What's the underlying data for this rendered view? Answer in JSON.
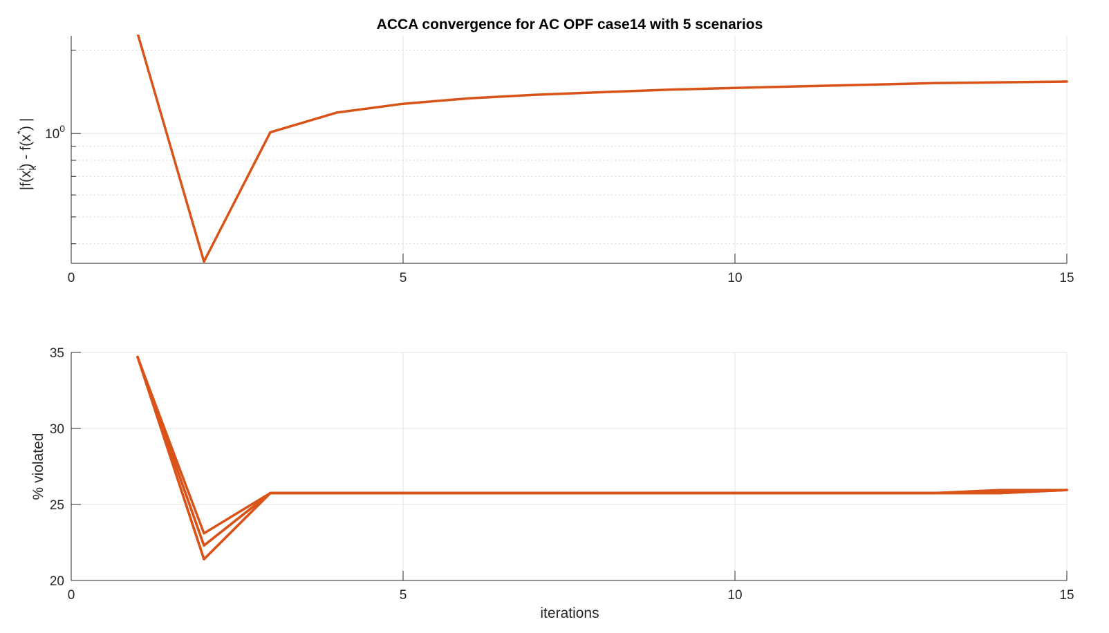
{
  "title": "ACCA convergence for AC OPF case14 with 5 scenarios",
  "colors": {
    "series": "#D95319",
    "axis": "#262626",
    "grid": "#e3e3e3",
    "background": "#ffffff"
  },
  "chart_data": [
    {
      "type": "line",
      "title": "ACCA convergence for AC OPF case14 with 5 scenarios",
      "xlabel": "",
      "ylabel": "|f(x_k^i) - f(x^*)|",
      "ylabel_parts": {
        "a": "|f(x",
        "sub": "k",
        "sup": "i",
        "b": ") - f(x",
        "sup2": "*",
        "c": ") |"
      },
      "xscale": "linear",
      "yscale": "log",
      "xlim": [
        0,
        15
      ],
      "ylim": [
        0.34,
        2.25
      ],
      "xticks": [
        0,
        5,
        10,
        15
      ],
      "xtick_labels": [
        "0",
        "5",
        "10",
        "15"
      ],
      "yticks": [
        1
      ],
      "ytick_labels": {
        "base": "10",
        "exp": "0"
      },
      "grid": true,
      "minor_grid": true,
      "series": [
        {
          "x": [
            1,
            2,
            3,
            4,
            5,
            6,
            7,
            8,
            9,
            10,
            11,
            12,
            13,
            14,
            15
          ],
          "values": [
            2.3,
            0.345,
            1.01,
            1.19,
            1.28,
            1.34,
            1.38,
            1.41,
            1.44,
            1.46,
            1.48,
            1.5,
            1.52,
            1.53,
            1.54
          ]
        }
      ]
    },
    {
      "type": "line",
      "title": "",
      "xlabel": "iterations",
      "ylabel": "% violated",
      "xscale": "linear",
      "yscale": "linear",
      "xlim": [
        0,
        15
      ],
      "ylim": [
        20,
        35
      ],
      "xticks": [
        0,
        5,
        10,
        15
      ],
      "xtick_labels": [
        "0",
        "5",
        "10",
        "15"
      ],
      "yticks": [
        20,
        25,
        30,
        35
      ],
      "ytick_labels": [
        "20",
        "25",
        "30",
        "35"
      ],
      "grid": true,
      "series": [
        {
          "x": [
            1,
            2,
            3,
            4,
            5,
            6,
            7,
            8,
            9,
            10,
            11,
            12,
            13,
            14,
            15
          ],
          "values": [
            34.7,
            21.4,
            25.75,
            25.75,
            25.75,
            25.75,
            25.75,
            25.75,
            25.75,
            25.75,
            25.75,
            25.75,
            25.75,
            25.75,
            25.95
          ]
        },
        {
          "x": [
            1,
            2,
            3,
            4,
            5,
            6,
            7,
            8,
            9,
            10,
            11,
            12,
            13,
            14,
            15
          ],
          "values": [
            34.7,
            22.3,
            25.75,
            25.75,
            25.75,
            25.75,
            25.75,
            25.75,
            25.75,
            25.75,
            25.75,
            25.75,
            25.75,
            25.9,
            25.95
          ]
        },
        {
          "x": [
            1,
            2,
            3,
            4,
            5,
            6,
            7,
            8,
            9,
            10,
            11,
            12,
            13,
            14,
            15
          ],
          "values": [
            34.7,
            23.1,
            25.75,
            25.75,
            25.75,
            25.75,
            25.75,
            25.75,
            25.75,
            25.75,
            25.75,
            25.75,
            25.75,
            25.95,
            25.95
          ]
        },
        {
          "x": [
            1,
            2,
            3,
            4,
            5,
            6,
            7,
            8,
            9,
            10,
            11,
            12,
            13,
            14,
            15
          ],
          "values": [
            34.7,
            21.4,
            25.75,
            25.75,
            25.75,
            25.75,
            25.75,
            25.75,
            25.75,
            25.75,
            25.75,
            25.75,
            25.75,
            25.75,
            25.95
          ]
        },
        {
          "x": [
            1,
            2,
            3,
            4,
            5,
            6,
            7,
            8,
            9,
            10,
            11,
            12,
            13,
            14,
            15
          ],
          "values": [
            34.7,
            22.3,
            25.75,
            25.75,
            25.75,
            25.75,
            25.75,
            25.75,
            25.75,
            25.75,
            25.75,
            25.75,
            25.75,
            25.75,
            25.95
          ]
        }
      ]
    }
  ]
}
